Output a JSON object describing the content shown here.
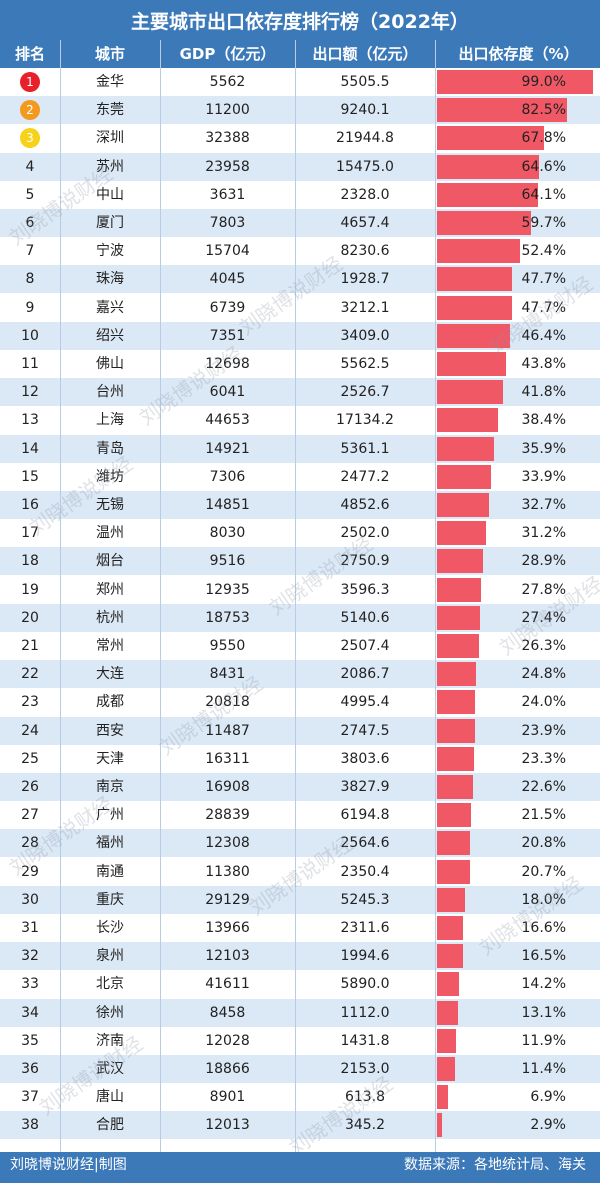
{
  "title": "主要城市出口依存度排行榜（2022年）",
  "headers": {
    "rank": "排名",
    "city": "城市",
    "gdp": "GDP（亿元）",
    "export": "出口额（亿元）",
    "dependency": "出口依存度（%）"
  },
  "colors": {
    "header_bg": "#3c79b9",
    "row_alt_bg": "#dbe8f5",
    "bar": "#f05865",
    "medal_1": "#e8202a",
    "medal_2": "#f39a1e",
    "medal_3": "#f6d21a"
  },
  "footer": {
    "left": "刘晓博说财经|制图",
    "right": "数据来源：各地统计局、海关"
  },
  "watermark": "刘晓博说财经",
  "chart_data": {
    "type": "table",
    "columns": [
      "排名",
      "城市",
      "GDP（亿元）",
      "出口额（亿元）",
      "出口依存度（%）"
    ],
    "rows": [
      {
        "rank": "1",
        "city": "金华",
        "gdp": "5562",
        "export": "5505.5",
        "dependency": "99.0%",
        "value": 99.0
      },
      {
        "rank": "2",
        "city": "东莞",
        "gdp": "11200",
        "export": "9240.1",
        "dependency": "82.5%",
        "value": 82.5
      },
      {
        "rank": "3",
        "city": "深圳",
        "gdp": "32388",
        "export": "21944.8",
        "dependency": "67.8%",
        "value": 67.8
      },
      {
        "rank": "4",
        "city": "苏州",
        "gdp": "23958",
        "export": "15475.0",
        "dependency": "64.6%",
        "value": 64.6
      },
      {
        "rank": "5",
        "city": "中山",
        "gdp": "3631",
        "export": "2328.0",
        "dependency": "64.1%",
        "value": 64.1
      },
      {
        "rank": "6",
        "city": "厦门",
        "gdp": "7803",
        "export": "4657.4",
        "dependency": "59.7%",
        "value": 59.7
      },
      {
        "rank": "7",
        "city": "宁波",
        "gdp": "15704",
        "export": "8230.6",
        "dependency": "52.4%",
        "value": 52.4
      },
      {
        "rank": "8",
        "city": "珠海",
        "gdp": "4045",
        "export": "1928.7",
        "dependency": "47.7%",
        "value": 47.7
      },
      {
        "rank": "9",
        "city": "嘉兴",
        "gdp": "6739",
        "export": "3212.1",
        "dependency": "47.7%",
        "value": 47.7
      },
      {
        "rank": "10",
        "city": "绍兴",
        "gdp": "7351",
        "export": "3409.0",
        "dependency": "46.4%",
        "value": 46.4
      },
      {
        "rank": "11",
        "city": "佛山",
        "gdp": "12698",
        "export": "5562.5",
        "dependency": "43.8%",
        "value": 43.8
      },
      {
        "rank": "12",
        "city": "台州",
        "gdp": "6041",
        "export": "2526.7",
        "dependency": "41.8%",
        "value": 41.8
      },
      {
        "rank": "13",
        "city": "上海",
        "gdp": "44653",
        "export": "17134.2",
        "dependency": "38.4%",
        "value": 38.4
      },
      {
        "rank": "14",
        "city": "青岛",
        "gdp": "14921",
        "export": "5361.1",
        "dependency": "35.9%",
        "value": 35.9
      },
      {
        "rank": "15",
        "city": "潍坊",
        "gdp": "7306",
        "export": "2477.2",
        "dependency": "33.9%",
        "value": 33.9
      },
      {
        "rank": "16",
        "city": "无锡",
        "gdp": "14851",
        "export": "4852.6",
        "dependency": "32.7%",
        "value": 32.7
      },
      {
        "rank": "17",
        "city": "温州",
        "gdp": "8030",
        "export": "2502.0",
        "dependency": "31.2%",
        "value": 31.2
      },
      {
        "rank": "18",
        "city": "烟台",
        "gdp": "9516",
        "export": "2750.9",
        "dependency": "28.9%",
        "value": 28.9
      },
      {
        "rank": "19",
        "city": "郑州",
        "gdp": "12935",
        "export": "3596.3",
        "dependency": "27.8%",
        "value": 27.8
      },
      {
        "rank": "20",
        "city": "杭州",
        "gdp": "18753",
        "export": "5140.6",
        "dependency": "27.4%",
        "value": 27.4
      },
      {
        "rank": "21",
        "city": "常州",
        "gdp": "9550",
        "export": "2507.4",
        "dependency": "26.3%",
        "value": 26.3
      },
      {
        "rank": "22",
        "city": "大连",
        "gdp": "8431",
        "export": "2086.7",
        "dependency": "24.8%",
        "value": 24.8
      },
      {
        "rank": "23",
        "city": "成都",
        "gdp": "20818",
        "export": "4995.4",
        "dependency": "24.0%",
        "value": 24.0
      },
      {
        "rank": "24",
        "city": "西安",
        "gdp": "11487",
        "export": "2747.5",
        "dependency": "23.9%",
        "value": 23.9
      },
      {
        "rank": "25",
        "city": "天津",
        "gdp": "16311",
        "export": "3803.6",
        "dependency": "23.3%",
        "value": 23.3
      },
      {
        "rank": "26",
        "city": "南京",
        "gdp": "16908",
        "export": "3827.9",
        "dependency": "22.6%",
        "value": 22.6
      },
      {
        "rank": "27",
        "city": "广州",
        "gdp": "28839",
        "export": "6194.8",
        "dependency": "21.5%",
        "value": 21.5
      },
      {
        "rank": "28",
        "city": "福州",
        "gdp": "12308",
        "export": "2564.6",
        "dependency": "20.8%",
        "value": 20.8
      },
      {
        "rank": "29",
        "city": "南通",
        "gdp": "11380",
        "export": "2350.4",
        "dependency": "20.7%",
        "value": 20.7
      },
      {
        "rank": "30",
        "city": "重庆",
        "gdp": "29129",
        "export": "5245.3",
        "dependency": "18.0%",
        "value": 18.0
      },
      {
        "rank": "31",
        "city": "长沙",
        "gdp": "13966",
        "export": "2311.6",
        "dependency": "16.6%",
        "value": 16.6
      },
      {
        "rank": "32",
        "city": "泉州",
        "gdp": "12103",
        "export": "1994.6",
        "dependency": "16.5%",
        "value": 16.5
      },
      {
        "rank": "33",
        "city": "北京",
        "gdp": "41611",
        "export": "5890.0",
        "dependency": "14.2%",
        "value": 14.2
      },
      {
        "rank": "34",
        "city": "徐州",
        "gdp": "8458",
        "export": "1112.0",
        "dependency": "13.1%",
        "value": 13.1
      },
      {
        "rank": "35",
        "city": "济南",
        "gdp": "12028",
        "export": "1431.8",
        "dependency": "11.9%",
        "value": 11.9
      },
      {
        "rank": "36",
        "city": "武汉",
        "gdp": "18866",
        "export": "2153.0",
        "dependency": "11.4%",
        "value": 11.4
      },
      {
        "rank": "37",
        "city": "唐山",
        "gdp": "8901",
        "export": "613.8",
        "dependency": "6.9%",
        "value": 6.9
      },
      {
        "rank": "38",
        "city": "合肥",
        "gdp": "12013",
        "export": "345.2",
        "dependency": "2.9%",
        "value": 2.9
      }
    ],
    "bar_column": "出口依存度（%）",
    "bar_range": [
      0,
      100
    ]
  }
}
